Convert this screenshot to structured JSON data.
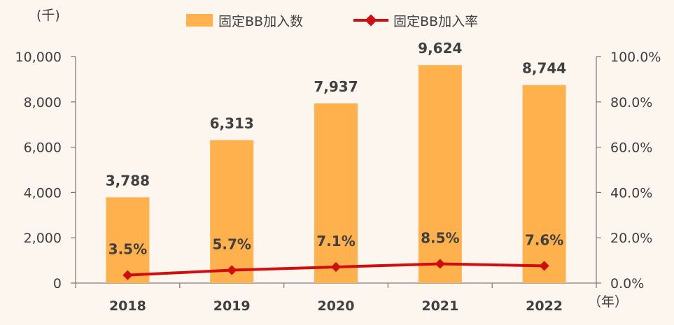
{
  "chart_data": {
    "type": "bar",
    "categories": [
      "2018",
      "2019",
      "2020",
      "2021",
      "2022"
    ],
    "series": [
      {
        "name": "固定BB加入数",
        "type": "bar",
        "axis": "left",
        "values": [
          3788,
          6313,
          7937,
          9624,
          8744
        ],
        "labels": [
          "3,788",
          "6,313",
          "7,937",
          "9,624",
          "8,744"
        ]
      },
      {
        "name": "固定BB加入率",
        "type": "line",
        "axis": "right",
        "values": [
          3.5,
          5.7,
          7.1,
          8.5,
          7.6
        ],
        "labels": [
          "3.5%",
          "5.7%",
          "7.1%",
          "8.5%",
          "7.6%"
        ]
      }
    ],
    "y_left": {
      "unit_label": "(千)",
      "ylim": [
        0,
        10000
      ],
      "ticks": [
        0,
        2000,
        4000,
        6000,
        8000,
        10000
      ],
      "tick_labels": [
        "0",
        "2,000",
        "4,000",
        "6,000",
        "8,000",
        "10,000"
      ]
    },
    "y_right": {
      "ylim": [
        0,
        100
      ],
      "ticks": [
        0,
        20,
        40,
        60,
        80,
        100
      ],
      "tick_labels": [
        "0.0%",
        "20.0%",
        "40.0%",
        "60.0%",
        "80.0%",
        "100.0%"
      ]
    },
    "x_unit_label": "（年）",
    "legend_position": "top",
    "grid": false,
    "colors": {
      "bar": "#ffb14e",
      "line": "#d10e0e",
      "axis": "#7f7f7f",
      "text": "#404040"
    }
  }
}
